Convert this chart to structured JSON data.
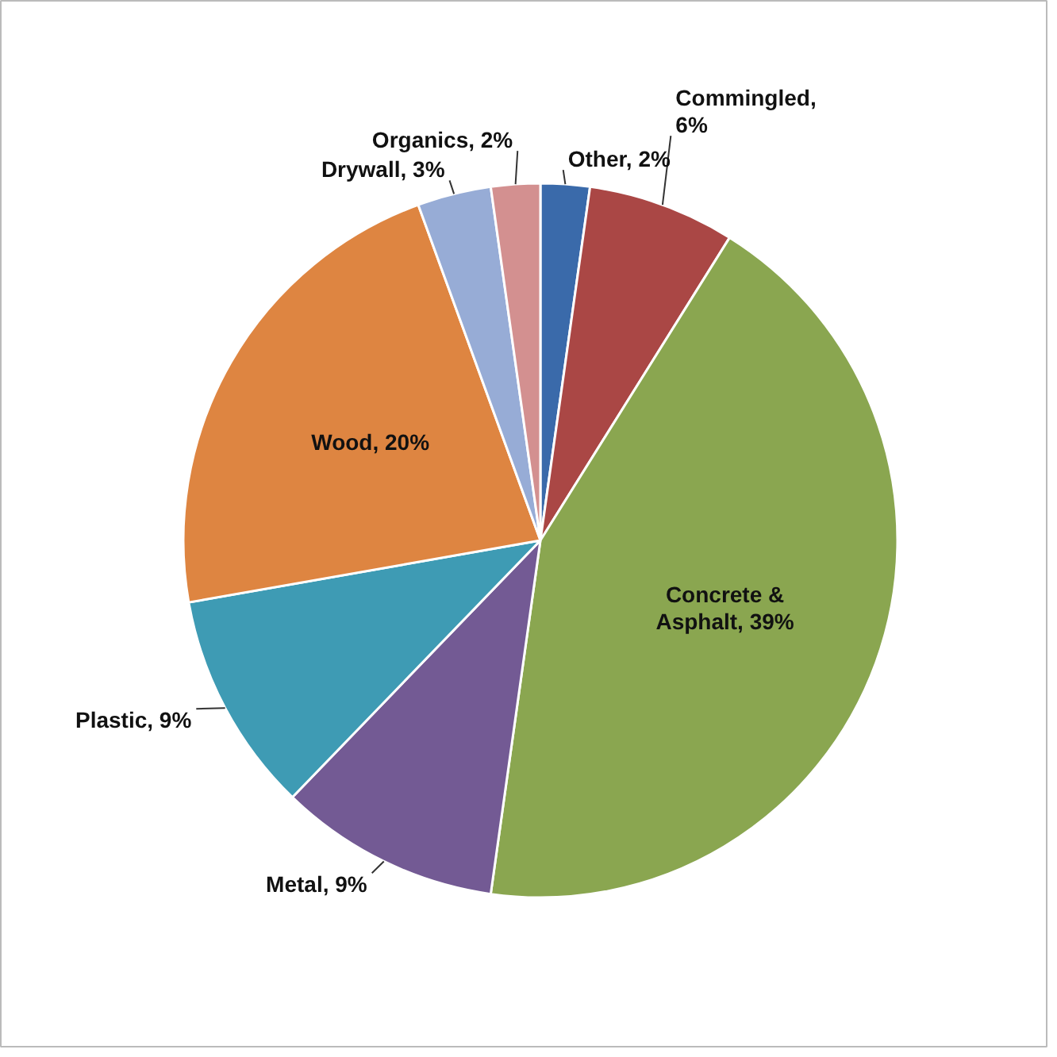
{
  "chart_data": {
    "type": "pie",
    "categories": [
      "Other, 2%",
      "Commingled, 6%",
      "Concrete & Asphalt, 39%",
      "Metal, 9%",
      "Plastic, 9%",
      "Wood, 20%",
      "Drywall, 3%",
      "Organics, 2%"
    ],
    "values": [
      2,
      6,
      39,
      9,
      9,
      20,
      3,
      2
    ],
    "colors": [
      "#3a6aaa",
      "#aa4745",
      "#8aa650",
      "#735a94",
      "#3e9bb4",
      "#de8541",
      "#97acd6",
      "#d39090"
    ]
  }
}
